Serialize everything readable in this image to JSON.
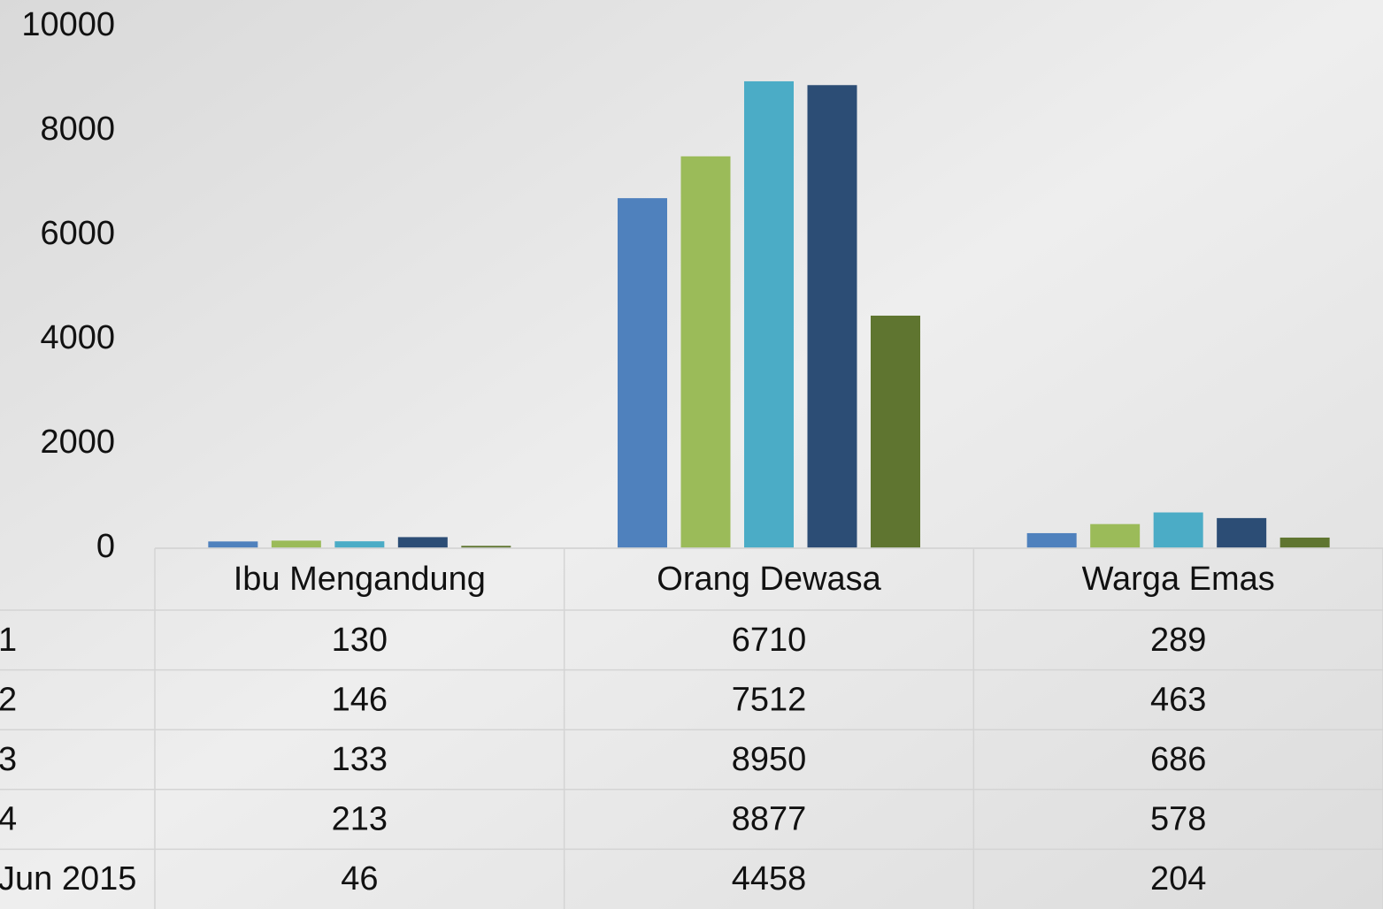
{
  "chart_data": {
    "type": "bar",
    "categories": [
      "Ibu Mengandung",
      "Orang Dewasa",
      "Warga Emas"
    ],
    "series": [
      {
        "name": "1",
        "color": "#4f81bd",
        "values": [
          130,
          6710,
          289
        ]
      },
      {
        "name": "2",
        "color": "#9bbb59",
        "values": [
          146,
          7512,
          463
        ]
      },
      {
        "name": "3",
        "color": "#4bacc6",
        "values": [
          133,
          8950,
          686
        ]
      },
      {
        "name": "4",
        "color": "#2c4d75",
        "values": [
          213,
          8877,
          578
        ]
      },
      {
        "name": "Jun 2015",
        "color": "#5f7530",
        "values": [
          46,
          4458,
          204
        ]
      }
    ],
    "ylim": [
      0,
      10000
    ],
    "yticks": [
      0,
      2000,
      4000,
      6000,
      8000,
      10000
    ],
    "grid": false,
    "data_table": true
  }
}
